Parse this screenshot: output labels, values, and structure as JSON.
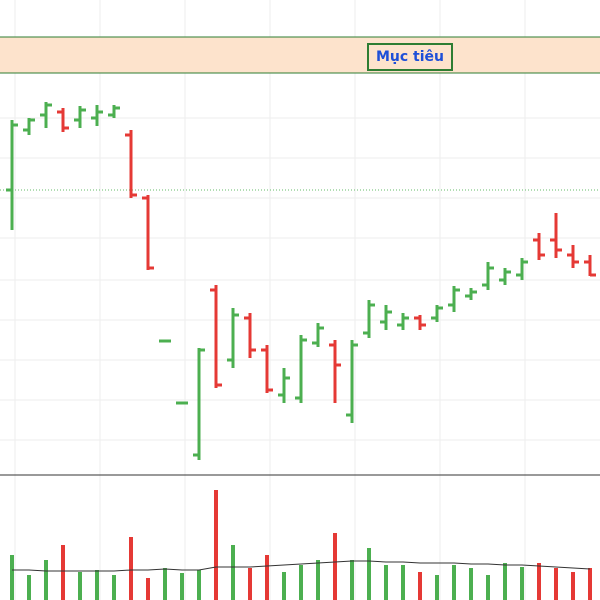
{
  "chart_data": {
    "type": "ohlc",
    "up_color": "#4caf50",
    "down_color": "#e53935",
    "ylim": [
      0,
      475
    ],
    "grid": true,
    "grid_y": [
      357,
      317,
      277,
      237,
      195,
      155,
      115,
      75,
      35
    ],
    "grid_x_every": 5,
    "target": {
      "label": "Mục tiêu",
      "from": 402,
      "to": 438,
      "color": "#fde3cc",
      "border": "#2e7d32",
      "text_color": "#1e4fd8"
    },
    "reference_line": {
      "value": 285,
      "color": "#66bb6a"
    },
    "open": [
      285,
      345,
      360,
      363,
      355,
      357,
      360,
      340,
      277,
      134,
      72,
      20,
      185,
      115,
      157,
      125,
      80,
      77,
      132,
      130,
      60,
      142,
      153,
      150,
      157,
      157,
      170,
      179,
      190,
      195,
      200,
      235,
      235,
      220,
      213
    ],
    "high": [
      355,
      357,
      373,
      367,
      369,
      370,
      370,
      345,
      280,
      135,
      73,
      127,
      190,
      167,
      162,
      130,
      107,
      140,
      152,
      135,
      135,
      175,
      170,
      162,
      160,
      170,
      189,
      187,
      213,
      207,
      217,
      242,
      262,
      230,
      220
    ],
    "low": [
      245,
      340,
      347,
      343,
      347,
      349,
      357,
      277,
      205,
      133,
      71,
      15,
      87,
      107,
      117,
      82,
      72,
      72,
      128,
      72,
      52,
      137,
      145,
      145,
      145,
      153,
      163,
      175,
      185,
      190,
      195,
      215,
      217,
      207,
      199
    ],
    "close": [
      350,
      355,
      370,
      347,
      365,
      363,
      367,
      280,
      207,
      134,
      72,
      125,
      90,
      160,
      125,
      85,
      97,
      135,
      147,
      110,
      130,
      170,
      163,
      157,
      150,
      167,
      185,
      183,
      207,
      203,
      213,
      220,
      225,
      213,
      200
    ],
    "volume": {
      "ylim": [
        0,
        122
      ],
      "values": [
        45,
        25,
        40,
        55,
        28,
        30,
        25,
        63,
        22,
        32,
        27,
        30,
        110,
        55,
        32,
        45,
        28,
        35,
        40,
        67,
        40,
        52,
        35,
        35,
        28,
        25,
        35,
        32,
        25,
        37,
        33,
        37,
        32,
        28,
        32
      ],
      "ma": {
        "color": "#333333",
        "values": [
          30,
          30,
          29,
          29,
          29,
          29,
          29,
          30,
          30,
          31,
          30,
          30,
          33,
          33,
          33,
          34,
          35,
          36,
          37,
          38,
          39,
          39,
          38,
          38,
          37,
          37,
          37,
          36,
          36,
          35,
          35,
          34,
          33,
          32,
          31
        ]
      }
    }
  }
}
